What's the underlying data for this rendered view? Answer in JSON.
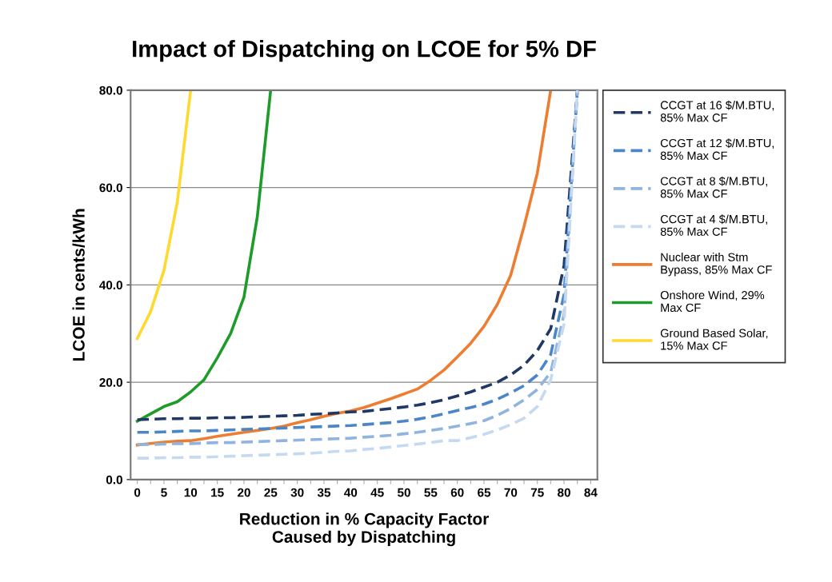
{
  "chart_data": {
    "type": "line",
    "title": "Impact of Dispatching on LCOE for 5% DF",
    "xlabel": "Reduction in % Capacity Factor\nCaused by Dispatching",
    "ylabel": "LCOE in cents/kWh",
    "categories": [
      "0",
      null,
      "5",
      null,
      "10",
      null,
      "15",
      null,
      "20",
      null,
      "25",
      null,
      "30",
      null,
      "35",
      null,
      "40",
      null,
      "45",
      null,
      "50",
      null,
      "55",
      null,
      "60",
      null,
      "65",
      null,
      "70",
      null,
      "75",
      null,
      "80",
      null,
      "84"
    ],
    "series": [
      {
        "name": "CCGT at 16 $/M.BTU,\n85% Max CF",
        "color": "#1f3864",
        "line_style": "dashed",
        "values": [
          12.3,
          12.4,
          12.5,
          12.5,
          12.6,
          12.6,
          12.7,
          12.7,
          12.8,
          12.9,
          13.0,
          13.1,
          13.2,
          13.4,
          13.5,
          13.7,
          13.9,
          14.0,
          14.3,
          14.6,
          14.9,
          15.3,
          15.8,
          16.4,
          17.2,
          18.0,
          19.0,
          20.0,
          21.5,
          23.5,
          26.5,
          31,
          44,
          80,
          null
        ]
      },
      {
        "name": "CCGT at 12 $/M.BTU,\n85% Max CF",
        "color": "#4a86c8",
        "line_style": "dashed",
        "values": [
          9.7,
          9.7,
          9.8,
          9.9,
          10.0,
          10.0,
          10.1,
          10.2,
          10.3,
          10.4,
          10.5,
          10.6,
          10.7,
          10.8,
          10.9,
          11.0,
          11.1,
          11.3,
          11.5,
          11.7,
          12.0,
          12.4,
          12.9,
          13.5,
          14.2,
          14.8,
          15.5,
          16.5,
          17.8,
          19.3,
          21.5,
          25.7,
          38,
          80,
          null
        ]
      },
      {
        "name": "CCGT at 8 $/M.BTU,\n85% Max CF",
        "color": "#8fb4e0",
        "line_style": "dashed",
        "values": [
          7.2,
          7.2,
          7.3,
          7.4,
          7.4,
          7.5,
          7.6,
          7.6,
          7.7,
          7.8,
          7.9,
          8.0,
          8.1,
          8.2,
          8.3,
          8.4,
          8.5,
          8.7,
          8.9,
          9.1,
          9.4,
          9.7,
          10.1,
          10.5,
          11.0,
          11.5,
          12.1,
          13.2,
          14.6,
          16.4,
          18.5,
          22,
          34,
          80,
          null
        ]
      },
      {
        "name": "CCGT at 4 $/M.BTU,\n85% Max CF",
        "color": "#c5d9f1",
        "line_style": "dashed",
        "values": [
          4.4,
          4.4,
          4.5,
          4.5,
          4.6,
          4.6,
          4.7,
          4.8,
          4.9,
          5.0,
          5.1,
          5.2,
          5.3,
          5.4,
          5.6,
          5.8,
          5.9,
          6.2,
          6.4,
          6.7,
          7.0,
          7.3,
          7.6,
          8.0,
          8.0,
          8.6,
          9.3,
          10.2,
          11.3,
          12.6,
          15.0,
          20.5,
          32,
          80,
          null
        ]
      },
      {
        "name": "Nuclear with Stm\nBypass, 85% Max CF",
        "color": "#ed7d31",
        "line_style": "solid",
        "values": [
          7.1,
          7.4,
          7.7,
          7.9,
          8.0,
          8.4,
          8.9,
          9.3,
          9.7,
          10.1,
          10.5,
          11.0,
          11.7,
          12.3,
          13.0,
          13.6,
          14.1,
          14.8,
          15.7,
          16.6,
          17.6,
          18.6,
          20.4,
          22.5,
          25.2,
          28,
          31.5,
          36,
          42,
          52,
          63,
          80,
          null,
          null,
          null
        ]
      },
      {
        "name": "Onshore Wind, 29%\nMax CF",
        "color": "#1e9b28",
        "line_style": "solid",
        "values": [
          12,
          13.5,
          15,
          16,
          18,
          20.5,
          25,
          30,
          37.5,
          54,
          80,
          null,
          null,
          null,
          null,
          null,
          null,
          null,
          null,
          null,
          null,
          null,
          null,
          null,
          null,
          null,
          null,
          null,
          null,
          null,
          null,
          null,
          null,
          null,
          null
        ]
      },
      {
        "name": "Ground Based Solar,\n15% Max CF",
        "color": "#ffd92f",
        "line_style": "solid",
        "values": [
          29,
          34.5,
          43,
          57,
          80,
          null,
          null,
          null,
          null,
          null,
          null,
          null,
          null,
          null,
          null,
          null,
          null,
          null,
          null,
          null,
          null,
          null,
          null,
          null,
          null,
          null,
          null,
          null,
          null,
          null,
          null,
          null,
          null,
          null,
          null
        ]
      }
    ],
    "ylim": [
      0,
      80
    ],
    "yticks": [
      {
        "value": 0,
        "label": "0.0"
      },
      {
        "value": 20,
        "label": "20.0"
      },
      {
        "value": 40,
        "label": "40.0"
      },
      {
        "value": 60,
        "label": "60.0"
      },
      {
        "value": 80,
        "label": "80.0"
      }
    ],
    "grid": "y",
    "legend": "right"
  }
}
